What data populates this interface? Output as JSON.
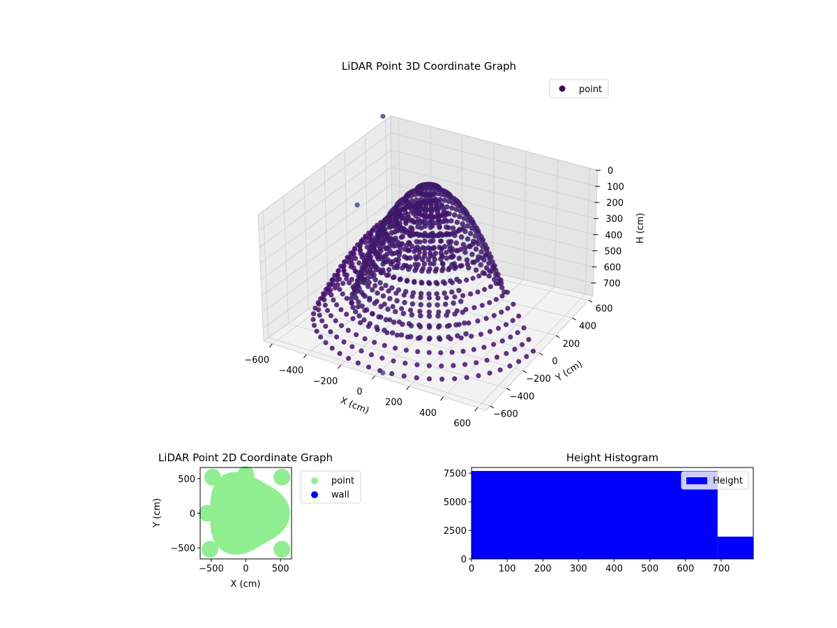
{
  "chart_data": [
    {
      "type": "scatter",
      "projection": "3d",
      "title": "LiDAR Point 3D Coordinate Graph",
      "xlabel": "X (cm)",
      "ylabel": "Y (cm)",
      "zlabel": "H (cm)",
      "xlim": [
        -650,
        650
      ],
      "ylim": [
        -650,
        650
      ],
      "zlim": [
        0,
        780
      ],
      "z_inverted": true,
      "xticks": [
        "−600",
        "−400",
        "−200",
        "0",
        "200",
        "400",
        "600"
      ],
      "yticks": [
        "−600",
        "−400",
        "−200",
        "0",
        "200",
        "400",
        "600"
      ],
      "zticks": [
        "0",
        "100",
        "200",
        "300",
        "400",
        "500",
        "600",
        "700"
      ],
      "grid": true,
      "legend": {
        "placement": "upper-right",
        "entries": [
          {
            "label": "point",
            "color": "#440154"
          }
        ]
      },
      "colormap": "viridis",
      "shapes": [
        {
          "kind": "inner_dome",
          "center": [
            -60,
            60
          ],
          "radius": 420,
          "h_top": 20,
          "h_bottom": 700,
          "color": "#3e1a6b"
        },
        {
          "kind": "outer_wall",
          "center": [
            0,
            0
          ],
          "radius": 640,
          "h_top": 90,
          "h_bottom": 760,
          "color": "#45106e"
        }
      ],
      "outliers": [
        {
          "x": -640,
          "y": 560,
          "h": -40
        },
        {
          "x": -420,
          "y": -60,
          "h": 150
        },
        {
          "x": 20,
          "y": -600,
          "h": 780
        }
      ]
    },
    {
      "type": "scatter",
      "title": "LiDAR Point 2D Coordinate Graph",
      "xlabel": "X (cm)",
      "ylabel": "Y (cm)",
      "xlim": [
        -660,
        660
      ],
      "ylim": [
        -660,
        660
      ],
      "xticks": [
        -500,
        0,
        500
      ],
      "yticks": [
        -500,
        0,
        500
      ],
      "legend": {
        "placement": "outside-right",
        "entries": [
          {
            "label": "point",
            "color": "#90ee90"
          },
          {
            "label": "wall",
            "color": "#0000ff"
          }
        ]
      },
      "series": [
        {
          "name": "point",
          "color": "#90ee90",
          "region_radius": 640
        },
        {
          "name": "wall",
          "color": "#0000ff",
          "count": 0
        }
      ]
    },
    {
      "type": "bar",
      "subtype": "histogram",
      "title": "Height Histogram",
      "xlim": [
        0,
        790
      ],
      "ylim": [
        0,
        8000
      ],
      "xticks": [
        0,
        100,
        200,
        300,
        400,
        500,
        600,
        700
      ],
      "yticks": [
        0,
        2500,
        5000,
        7500
      ],
      "legend": {
        "placement": "upper-right",
        "entries": [
          {
            "label": "Height",
            "color": "#0000ff"
          }
        ]
      },
      "bins": [
        {
          "from": 0,
          "to": 690,
          "count": 7700
        },
        {
          "from": 690,
          "to": 790,
          "count": 1950
        }
      ],
      "color": "#0000ff"
    }
  ]
}
